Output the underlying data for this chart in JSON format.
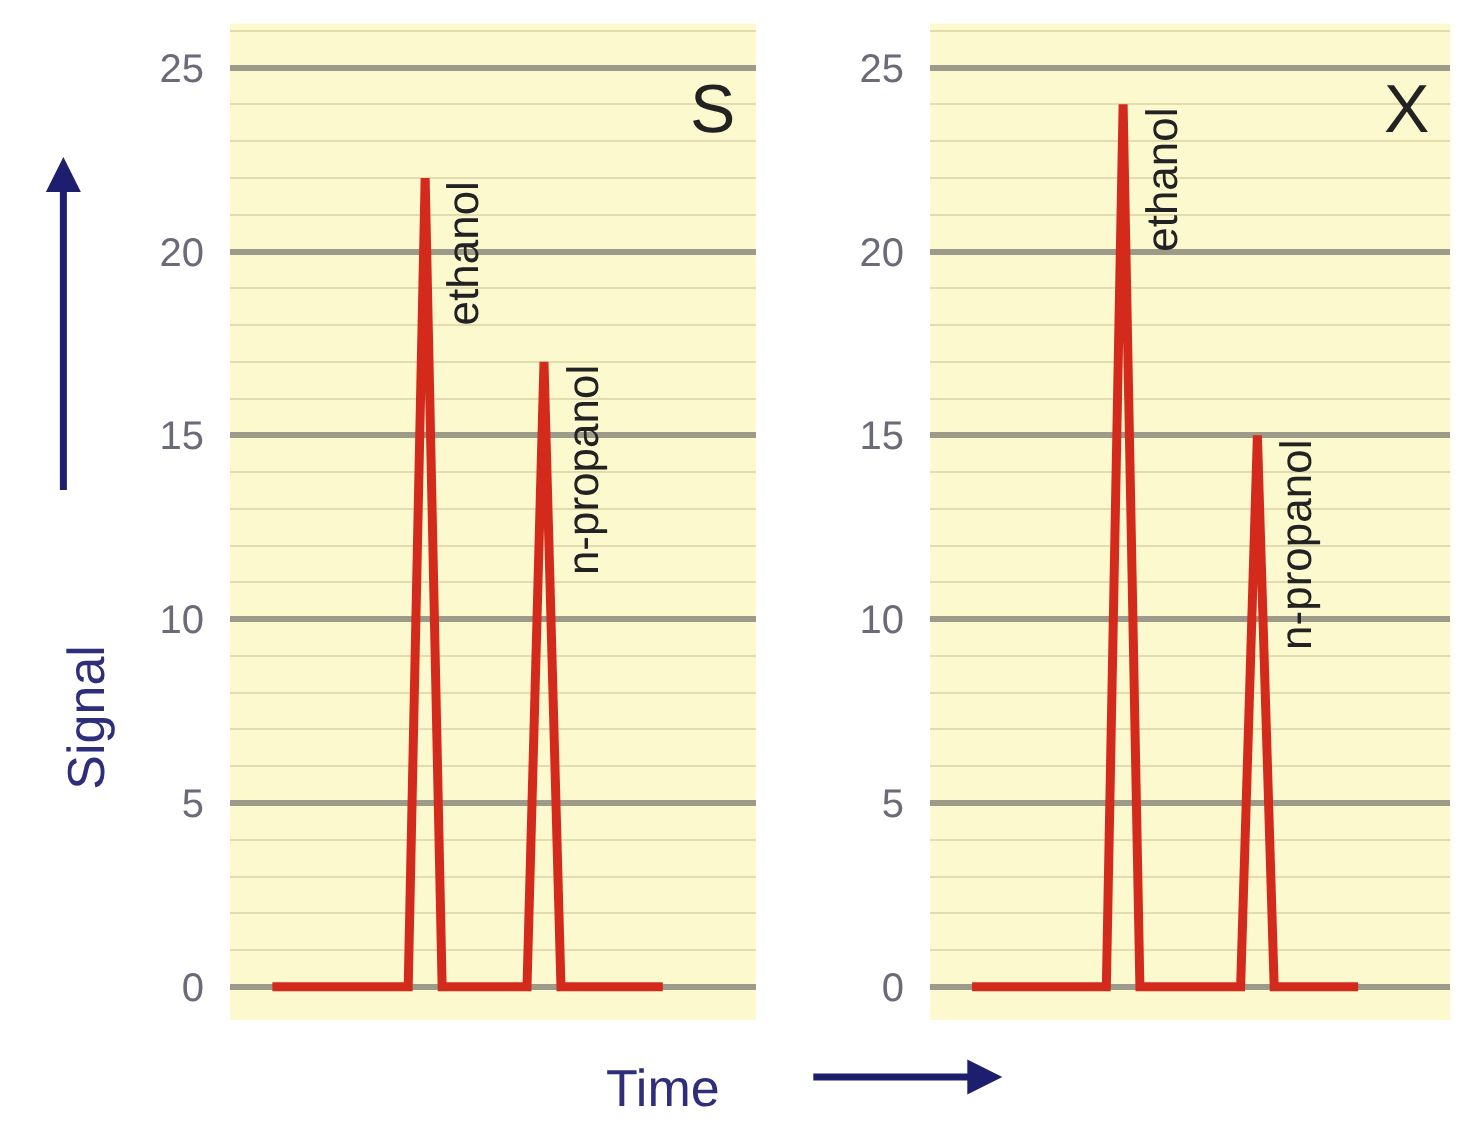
{
  "chart_data": [
    {
      "type": "line",
      "title": "S",
      "ylabel": "Signal",
      "xlabel": "Time",
      "categories": [
        null,
        null,
        null,
        null,
        null,
        null,
        null,
        null,
        null,
        null,
        null,
        null,
        null,
        null,
        null,
        null,
        null,
        null,
        null,
        null,
        null,
        null,
        null,
        null,
        null,
        null,
        null,
        null,
        null,
        null,
        null
      ],
      "series": [
        {
          "color": "#d42a1c",
          "values": [
            null,
            null,
            0,
            0,
            0,
            0,
            0,
            0,
            0,
            0,
            0,
            22,
            0,
            0,
            0,
            0,
            0,
            0,
            17,
            0,
            0,
            0,
            0,
            0,
            0,
            0,
            null,
            null,
            null,
            null,
            null
          ]
        }
      ],
      "annotations": [
        "ethanol",
        "n-propanol"
      ],
      "ylim": [
        -0.9,
        26.2
      ],
      "yticks": [
        0,
        {
          "value": 1,
          "label": null
        },
        {
          "value": 2,
          "label": null
        },
        {
          "value": 3,
          "label": null
        },
        {
          "value": 4,
          "label": null
        },
        5,
        {
          "value": 6,
          "label": null
        },
        {
          "value": 7,
          "label": null
        },
        {
          "value": 8,
          "label": null
        },
        {
          "value": 9,
          "label": null
        },
        10,
        {
          "value": 11,
          "label": null
        },
        {
          "value": 12,
          "label": null
        },
        {
          "value": 13,
          "label": null
        },
        {
          "value": 14,
          "label": null
        },
        15,
        {
          "value": 16,
          "label": null
        },
        {
          "value": 17,
          "label": null
        },
        {
          "value": 18,
          "label": null
        },
        {
          "value": 19,
          "label": null
        },
        20,
        {
          "value": 21,
          "label": null
        },
        {
          "value": 22,
          "label": null
        },
        {
          "value": 23,
          "label": null
        },
        {
          "value": 24,
          "label": null
        },
        25,
        {
          "value": 26,
          "label": null
        }
      ],
      "grid": "y",
      "tick_labels": "y",
      "marker": "none",
      "line_style": "solid"
    },
    {
      "type": "line",
      "title": "X",
      "categories": [
        null,
        null,
        null,
        null,
        null,
        null,
        null,
        null,
        null,
        null,
        null,
        null,
        null,
        null,
        null,
        null,
        null,
        null,
        null,
        null,
        null,
        null,
        null,
        null,
        null,
        null,
        null,
        null,
        null,
        null,
        null
      ],
      "series": [
        {
          "color": "#d42a1c",
          "values": [
            null,
            null,
            0,
            0,
            0,
            0,
            0,
            0,
            0,
            0,
            0,
            24,
            0,
            0,
            0,
            0,
            0,
            0,
            0,
            15,
            0,
            0,
            0,
            0,
            0,
            0,
            null,
            null,
            null,
            null,
            null
          ]
        }
      ],
      "annotations": [
        "ethanol",
        "n-propanol"
      ],
      "ylim": [
        -0.9,
        26.2
      ],
      "yticks": [
        0,
        {
          "value": 1,
          "label": null
        },
        {
          "value": 2,
          "label": null
        },
        {
          "value": 3,
          "label": null
        },
        {
          "value": 4,
          "label": null
        },
        5,
        {
          "value": 6,
          "label": null
        },
        {
          "value": 7,
          "label": null
        },
        {
          "value": 8,
          "label": null
        },
        {
          "value": 9,
          "label": null
        },
        10,
        {
          "value": 11,
          "label": null
        },
        {
          "value": 12,
          "label": null
        },
        {
          "value": 13,
          "label": null
        },
        {
          "value": 14,
          "label": null
        },
        15,
        {
          "value": 16,
          "label": null
        },
        {
          "value": 17,
          "label": null
        },
        {
          "value": 18,
          "label": null
        },
        {
          "value": 19,
          "label": null
        },
        20,
        {
          "value": 21,
          "label": null
        },
        {
          "value": 22,
          "label": null
        },
        {
          "value": 23,
          "label": null
        },
        {
          "value": 24,
          "label": null
        },
        25,
        {
          "value": 26,
          "label": null
        }
      ],
      "grid": "y",
      "tick_labels": "y",
      "marker": "none",
      "line_style": "solid"
    }
  ]
}
